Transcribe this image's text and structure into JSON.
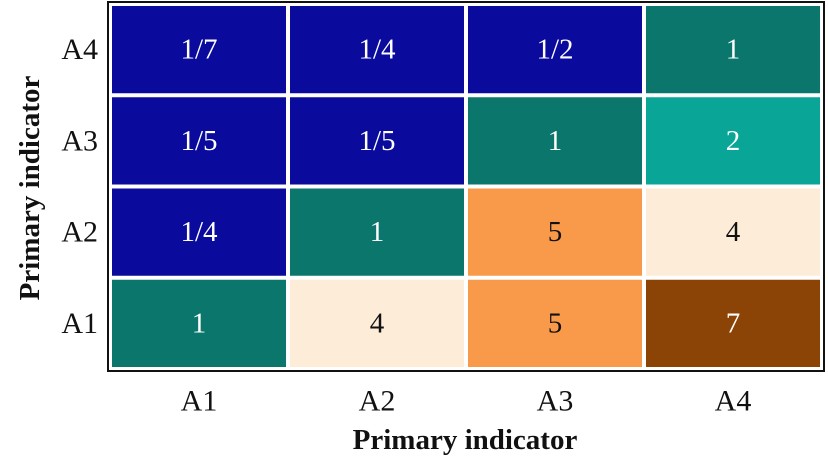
{
  "chart_data": {
    "type": "heatmap",
    "x_label": "Primary indicator",
    "y_label": "Primary indicator",
    "x": [
      "A1",
      "A2",
      "A3",
      "A4"
    ],
    "y": [
      "A1",
      "A2",
      "A3",
      "A4"
    ],
    "values": [
      [
        1,
        4,
        5,
        7
      ],
      [
        0.25,
        1,
        5,
        4
      ],
      [
        0.2,
        0.2,
        1,
        2
      ],
      [
        0.143,
        0.25,
        0.5,
        1
      ]
    ],
    "value_labels": [
      [
        "1",
        "4",
        "5",
        "7"
      ],
      [
        "1/4",
        "1",
        "5",
        "4"
      ],
      [
        "1/5",
        "1/5",
        "1",
        "2"
      ],
      [
        "1/7",
        "1/4",
        "1/2",
        "1"
      ]
    ],
    "colors": [
      [
        "#0b776c",
        "#fcecd8",
        "#f99a4a",
        "#8b4406"
      ],
      [
        "#0a0a9c",
        "#0b776c",
        "#f99a4a",
        "#fcecd8"
      ],
      [
        "#0a0a9c",
        "#0a0a9c",
        "#0b776c",
        "#09a597"
      ],
      [
        "#0a0a9c",
        "#0a0a9c",
        "#0a0a9c",
        "#0b776c"
      ]
    ]
  }
}
